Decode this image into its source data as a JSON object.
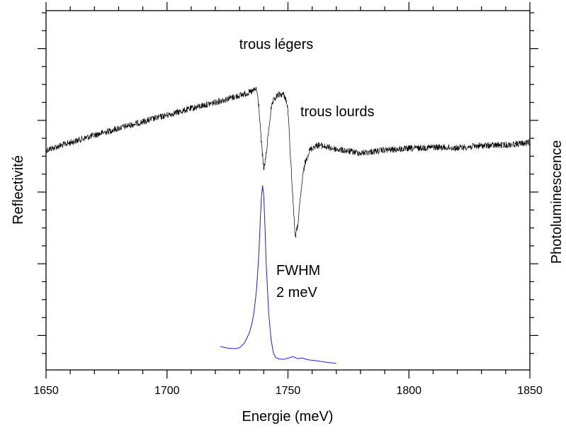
{
  "chart_data": {
    "type": "line",
    "title": "",
    "xlabel": "Energie (meV)",
    "ylabel_left": "Reflectivité",
    "ylabel_right": "Photoluminescence",
    "xlim": [
      1650,
      1850
    ],
    "x_ticks": [
      1650,
      1700,
      1750,
      1800,
      1850
    ],
    "x_minor_step": 10,
    "left_y_ticks_shown_labels": false,
    "right_y_ticks_shown_labels": false,
    "grid": false,
    "legend": "none",
    "colors": {
      "reflectivity": "#000000",
      "photoluminescence": "#1f1fd6"
    },
    "annotations": [
      {
        "id": "light-holes",
        "text": "trous légers",
        "x": 1738
      },
      {
        "id": "heavy-holes",
        "text": "trous lourds",
        "x": 1757
      },
      {
        "id": "fwhm-line1",
        "text": "FWHM",
        "x": 1744
      },
      {
        "id": "fwhm-line2",
        "text": "2 meV",
        "x": 1744
      }
    ],
    "series": [
      {
        "id": "reflectivity",
        "color": "#000000",
        "noise": true,
        "x": [
          1650,
          1660,
          1670,
          1680,
          1690,
          1700,
          1710,
          1720,
          1730,
          1733,
          1735,
          1737,
          1738,
          1739,
          1740,
          1741,
          1742,
          1743,
          1744,
          1746,
          1748,
          1749,
          1750,
          1751,
          1752,
          1753,
          1754,
          1755,
          1756,
          1757,
          1758,
          1759,
          1761,
          1763,
          1766,
          1770,
          1780,
          1790,
          1800,
          1810,
          1820,
          1830,
          1840,
          1850
        ],
        "y": [
          0.735,
          0.76,
          0.785,
          0.808,
          0.83,
          0.852,
          0.874,
          0.895,
          0.918,
          0.925,
          0.93,
          0.94,
          0.88,
          0.76,
          0.67,
          0.72,
          0.8,
          0.87,
          0.9,
          0.92,
          0.922,
          0.91,
          0.87,
          0.72,
          0.58,
          0.445,
          0.48,
          0.56,
          0.64,
          0.69,
          0.715,
          0.735,
          0.748,
          0.752,
          0.745,
          0.738,
          0.725,
          0.735,
          0.74,
          0.745,
          0.742,
          0.75,
          0.752,
          0.76
        ]
      },
      {
        "id": "photoluminescence",
        "color": "#1f1fd6",
        "noise": false,
        "x": [
          1722,
          1725,
          1728,
          1730,
          1732,
          1734,
          1735,
          1736,
          1737,
          1738,
          1738.5,
          1739,
          1739.5,
          1740,
          1740.5,
          1741,
          1742,
          1743,
          1744,
          1745,
          1746,
          1748,
          1750,
          1752,
          1754,
          1756,
          1758,
          1762,
          1766,
          1770
        ],
        "y": [
          0.112,
          0.103,
          0.1,
          0.105,
          0.13,
          0.185,
          0.23,
          0.3,
          0.42,
          0.62,
          0.78,
          0.92,
          0.985,
          0.93,
          0.76,
          0.56,
          0.3,
          0.15,
          0.075,
          0.052,
          0.045,
          0.042,
          0.048,
          0.057,
          0.046,
          0.05,
          0.04,
          0.034,
          0.026,
          0.02
        ]
      }
    ]
  }
}
